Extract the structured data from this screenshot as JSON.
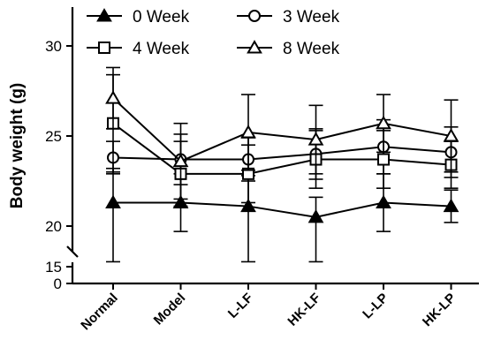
{
  "chart_data": {
    "type": "line",
    "title": "",
    "xlabel": "",
    "ylabel": "Body weight (g)",
    "categories": [
      "Normal",
      "Model",
      "L-LF",
      "HK-LF",
      "L-LP",
      "HK-LP"
    ],
    "ylim": [
      0,
      31
    ],
    "axis_break": [
      15.5,
      19.5
    ],
    "yticks_upper": [
      20,
      25,
      30
    ],
    "yticks_upper_labels": [
      "20",
      "25",
      "30"
    ],
    "yticks_lower": [
      0,
      15
    ],
    "yticks_lower_labels": [
      "0",
      "15"
    ],
    "legend_placement": "top",
    "grid": false,
    "series": [
      {
        "name": "0 Week",
        "marker": "filled-triangle",
        "values": [
          21.3,
          21.3,
          21.1,
          20.5,
          21.3,
          21.1
        ],
        "errors": [
          1.9,
          1.6,
          1.7,
          1.1,
          1.6,
          0.9
        ]
      },
      {
        "name": "3 Week",
        "marker": "open-circle",
        "values": [
          23.8,
          23.7,
          23.7,
          24.0,
          24.4,
          24.1
        ],
        "errors": [
          0.9,
          1.4,
          1.2,
          1.4,
          1.5,
          1.4
        ]
      },
      {
        "name": "4 Week",
        "marker": "open-square",
        "values": [
          25.7,
          22.9,
          22.9,
          23.7,
          23.7,
          23.4
        ],
        "errors": [
          2.7,
          1.8,
          1.6,
          1.6,
          1.6,
          1.3
        ]
      },
      {
        "name": "8 Week",
        "marker": "open-triangle",
        "values": [
          27.1,
          23.6,
          25.2,
          24.8,
          25.7,
          25.0
        ],
        "errors": [
          1.7,
          2.1,
          2.1,
          1.9,
          1.6,
          2.0
        ]
      }
    ]
  }
}
